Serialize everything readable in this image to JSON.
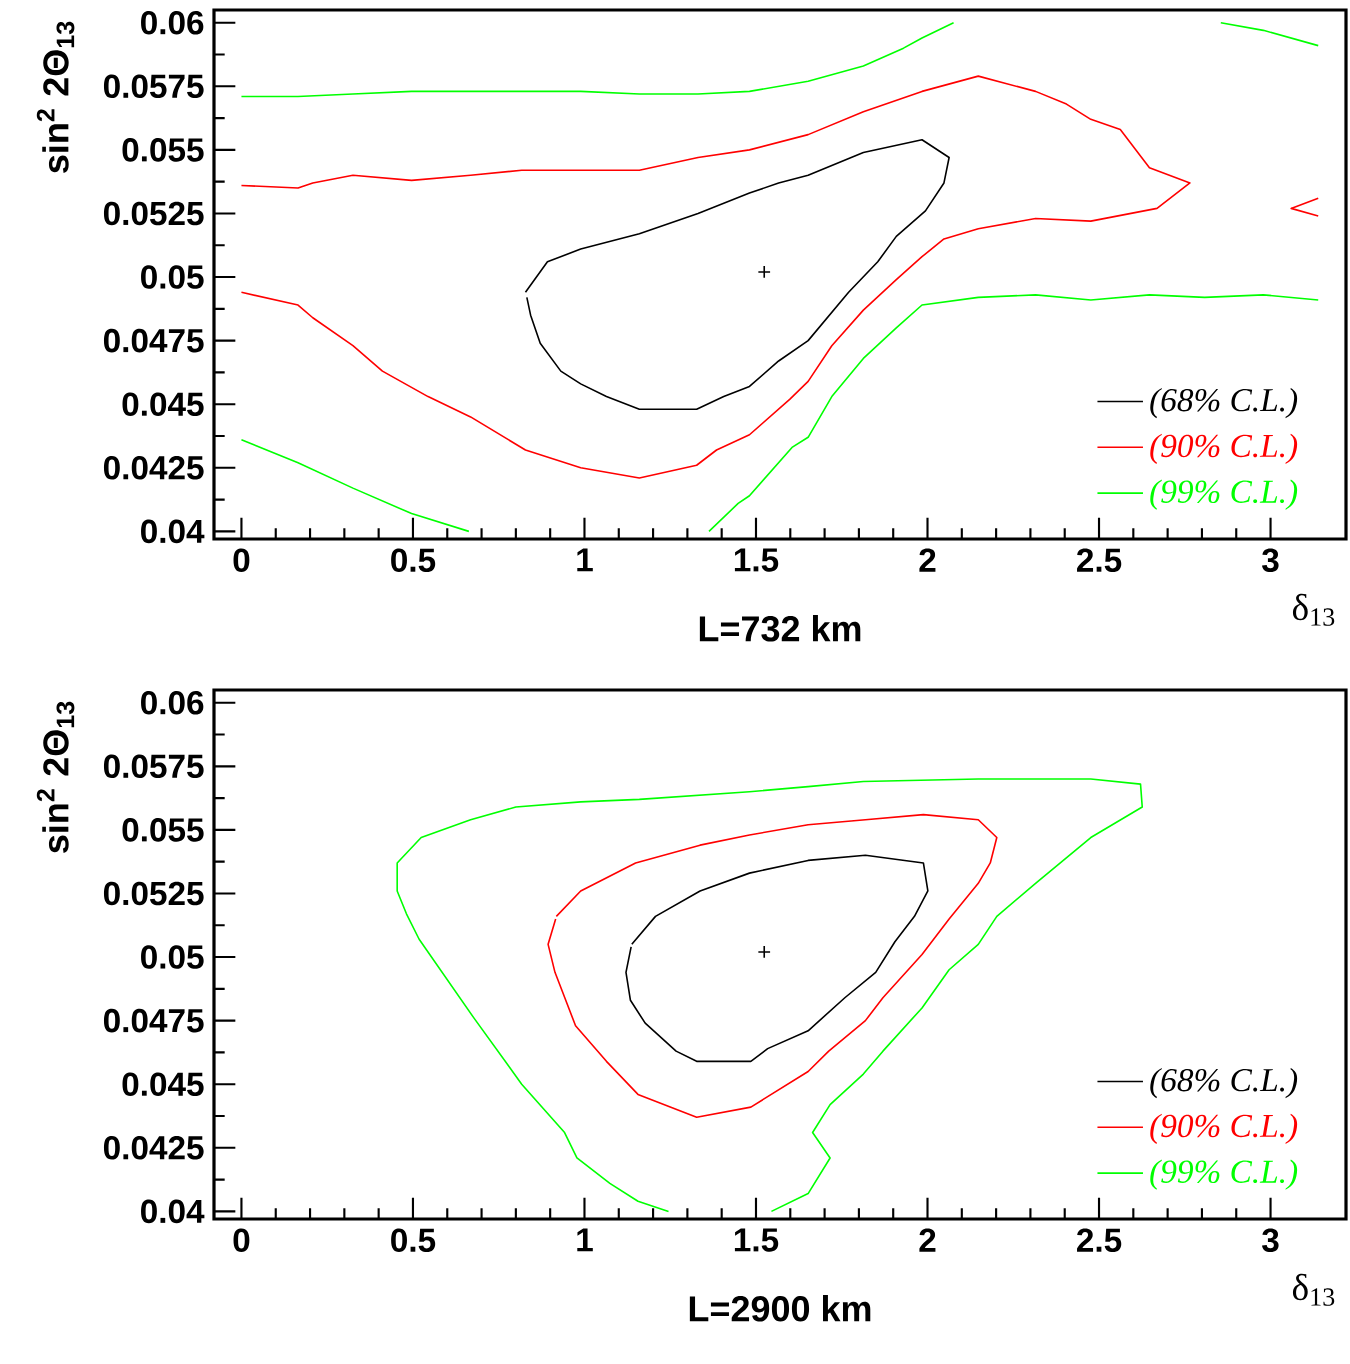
{
  "chart_data": [
    {
      "type": "line",
      "title": "L=732 km",
      "xlabel": "δ$_{13}$",
      "ylabel": "sin$^{2}$ 2Θ$_{13}$",
      "xlim": [
        -0.08,
        3.22
      ],
      "ylim": [
        0.0397,
        0.0605
      ],
      "xticks": [
        0,
        0.5,
        1,
        1.5,
        2,
        2.5,
        3
      ],
      "yticks": [
        0.04,
        0.0425,
        0.045,
        0.0475,
        0.05,
        0.0525,
        0.055,
        0.0575,
        0.06
      ],
      "legend": "bottom right",
      "marker": "none",
      "line_style": "solid",
      "series": [
        {
          "name": "(68% C.L.)",
          "color": "#000000",
          "x": [
            0.828,
            0.892,
            0.989,
            1.16,
            1.331,
            1.481,
            1.566,
            1.652,
            1.813,
            1.984,
            2.063,
            2.048,
            1.994,
            1.909,
            1.855,
            1.77,
            1.652,
            1.566,
            1.481,
            1.406,
            1.327,
            1.16,
            1.064,
            0.989,
            0.931,
            0.871,
            0.843,
            0.832
          ],
          "values": [
            0.0494,
            0.0506,
            0.0511,
            0.0517,
            0.0525,
            0.0533,
            0.0537,
            0.054,
            0.0549,
            0.0554,
            0.0547,
            0.0537,
            0.0526,
            0.0516,
            0.0506,
            0.0494,
            0.0475,
            0.0467,
            0.0457,
            0.0453,
            0.0448,
            0.0448,
            0.0453,
            0.0458,
            0.0463,
            0.0474,
            0.0485,
            0.0492
          ]
        },
        {
          "name": "(90% C.L.)",
          "color": "#ff0000",
          "x": [
            0,
            0.165,
            0.208,
            0.325,
            0.496,
            0.668,
            0.817,
            1.16,
            1.331,
            1.481,
            1.652,
            1.813,
            1.984,
            2.148,
            2.315,
            2.405,
            2.476,
            2.562,
            2.647,
            2.765,
            2.669,
            2.476,
            2.315,
            2.148,
            2.048,
            1.984,
            1.909,
            1.813,
            1.721,
            1.652,
            1.599,
            1.481,
            1.385,
            1.327,
            1.16,
            0.989,
            0.828,
            0.668,
            0.544,
            0.411,
            0.325,
            0.208,
            0.165,
            0
          ],
          "values": [
            0.0536,
            0.0535,
            0.0537,
            0.054,
            0.0538,
            0.054,
            0.0542,
            0.0542,
            0.0547,
            0.055,
            0.0556,
            0.0565,
            0.0573,
            0.0579,
            0.0573,
            0.0568,
            0.0562,
            0.0558,
            0.0543,
            0.0537,
            0.0527,
            0.0522,
            0.0523,
            0.0519,
            0.0515,
            0.0508,
            0.0499,
            0.0487,
            0.0473,
            0.0459,
            0.0452,
            0.0438,
            0.0432,
            0.0426,
            0.0421,
            0.0425,
            0.0432,
            0.0445,
            0.0453,
            0.0463,
            0.0473,
            0.0484,
            0.0489,
            0.0494
          ]
        },
        {
          "color": "#ff0000",
          "x": [
            3.139,
            3.06,
            3.139
          ],
          "values": [
            0.0531,
            0.0527,
            0.0524
          ]
        },
        {
          "name": "(99% C.L.)",
          "color": "#00ff00",
          "x": [
            0,
            0.165,
            0.325,
            0.496,
            0.817,
            0.989,
            1.16,
            1.331,
            1.481,
            1.652,
            1.813,
            1.93,
            1.984,
            2.076
          ],
          "values": [
            0.0571,
            0.0571,
            0.0572,
            0.0573,
            0.0573,
            0.0573,
            0.0572,
            0.0572,
            0.0573,
            0.0577,
            0.0583,
            0.059,
            0.0594,
            0.06
          ]
        },
        {
          "color": "#00ff00",
          "x": [
            2.855,
            2.979,
            3.139
          ],
          "values": [
            0.06,
            0.0597,
            0.0591
          ]
        },
        {
          "color": "#00ff00",
          "x": [
            0,
            0.165,
            0.325,
            0.496,
            0.663
          ],
          "values": [
            0.0436,
            0.0427,
            0.0417,
            0.0407,
            0.04
          ]
        },
        {
          "color": "#00ff00",
          "x": [
            1.363,
            1.448,
            1.481,
            1.605,
            1.652,
            1.721,
            1.813,
            1.909,
            1.984,
            2.148,
            2.315,
            2.476,
            2.647,
            2.808,
            2.979,
            3.139
          ],
          "values": [
            0.04,
            0.0411,
            0.0414,
            0.0433,
            0.0437,
            0.0453,
            0.0468,
            0.048,
            0.0489,
            0.0492,
            0.0493,
            0.0491,
            0.0493,
            0.0492,
            0.0493,
            0.0491
          ]
        },
        {
          "type": "scatter",
          "marker": "cross",
          "color": "#000000",
          "x": [
            1.524
          ],
          "values": [
            0.0502
          ]
        }
      ]
    },
    {
      "type": "line",
      "title": "L=2900 km",
      "xlabel": "δ$_{13}$",
      "ylabel": "sin$^{2}$ 2Θ$_{13}$",
      "xlim": [
        -0.08,
        3.22
      ],
      "ylim": [
        0.0397,
        0.0605
      ],
      "xticks": [
        0,
        0.5,
        1,
        1.5,
        2,
        2.5,
        3
      ],
      "yticks": [
        0.04,
        0.0425,
        0.045,
        0.0475,
        0.05,
        0.0525,
        0.055,
        0.0575,
        0.06
      ],
      "legend": "bottom right",
      "marker": "none",
      "line_style": "solid",
      "series": [
        {
          "name": "(68% C.L.)",
          "color": "#000000",
          "x": [
            1.138,
            1.207,
            1.337,
            1.481,
            1.652,
            1.819,
            1.988,
            2.001,
            1.962,
            1.905,
            1.849,
            1.759,
            1.652,
            1.534,
            1.485,
            1.327,
            1.267,
            1.177,
            1.134,
            1.121,
            1.136
          ],
          "values": [
            0.0505,
            0.0516,
            0.0526,
            0.0533,
            0.0538,
            0.054,
            0.0537,
            0.0526,
            0.0516,
            0.0506,
            0.0494,
            0.0484,
            0.0471,
            0.0464,
            0.0459,
            0.0459,
            0.0463,
            0.0474,
            0.0483,
            0.0494,
            0.0504
          ]
        },
        {
          "name": "(90% C.L.)",
          "color": "#ff0000",
          "x": [
            0.918,
            0.989,
            1.149,
            1.337,
            1.481,
            1.652,
            1.819,
            1.988,
            2.148,
            2.202,
            2.183,
            2.148,
            2.063,
            1.984,
            1.87,
            1.819,
            1.712,
            1.652,
            1.485,
            1.327,
            1.156,
            1.064,
            0.974,
            0.914,
            0.894,
            0.916
          ],
          "values": [
            0.0516,
            0.0526,
            0.0537,
            0.0544,
            0.0548,
            0.0552,
            0.0554,
            0.0556,
            0.0554,
            0.0547,
            0.0537,
            0.0529,
            0.0515,
            0.0501,
            0.0484,
            0.0475,
            0.0463,
            0.0455,
            0.0441,
            0.0437,
            0.0446,
            0.0459,
            0.0473,
            0.0494,
            0.0505,
            0.0515
          ]
        },
        {
          "name": "(99% C.L.)",
          "color": "#00ff00",
          "x": [
            1.245,
            1.156,
            1.074,
            0.978,
            0.942,
            0.817,
            0.678,
            0.518,
            0.481,
            0.454,
            0.454,
            0.524,
            0.668,
            0.8,
            0.989,
            1.16,
            1.481,
            1.652,
            1.813,
            2.148,
            2.476,
            2.621,
            2.626,
            2.476,
            2.315,
            2.202,
            2.148,
            2.063,
            1.984,
            1.87,
            1.813,
            1.716,
            1.665,
            1.716,
            1.652,
            1.545
          ],
          "values": [
            0.04,
            0.0404,
            0.0411,
            0.0421,
            0.0431,
            0.045,
            0.0476,
            0.0507,
            0.0517,
            0.0526,
            0.0537,
            0.0547,
            0.0554,
            0.0559,
            0.0561,
            0.0562,
            0.0565,
            0.0567,
            0.0569,
            0.057,
            0.057,
            0.0568,
            0.0559,
            0.0547,
            0.0529,
            0.0516,
            0.0505,
            0.0495,
            0.048,
            0.0463,
            0.0454,
            0.0442,
            0.0431,
            0.0421,
            0.0407,
            0.04
          ]
        },
        {
          "type": "scatter",
          "marker": "cross",
          "color": "#000000",
          "x": [
            1.524
          ],
          "values": [
            0.0502
          ]
        }
      ]
    }
  ]
}
